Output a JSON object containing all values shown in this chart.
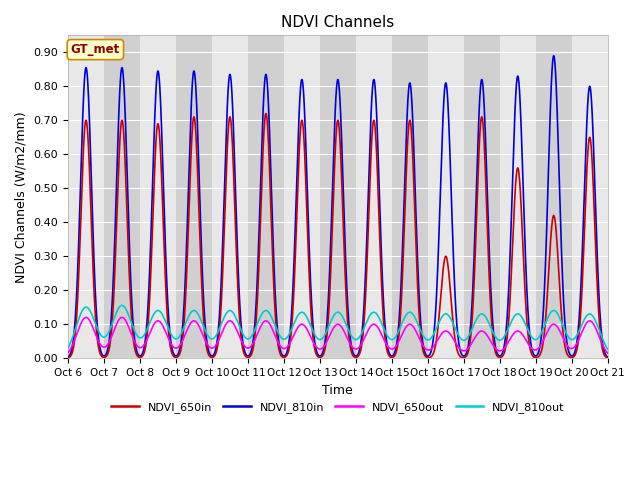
{
  "title": "NDVI Channels",
  "xlabel": "Time",
  "ylabel": "NDVI Channels (W/m2/mm)",
  "ylim": [
    0.0,
    0.95
  ],
  "yticks": [
    0.0,
    0.1,
    0.2,
    0.3,
    0.4,
    0.5,
    0.6,
    0.7,
    0.8,
    0.9
  ],
  "xtick_labels": [
    "Oct 6",
    "Oct 7",
    "Oct 8",
    "Oct 9",
    "Oct 10",
    "Oct 11",
    "Oct 12",
    "Oct 13",
    "Oct 14",
    "Oct 15",
    "Oct 16",
    "Oct 17",
    "Oct 18",
    "Oct 19",
    "Oct 20",
    "Oct 21"
  ],
  "n_days": 15,
  "colors": {
    "NDVI_650in": "#cc0000",
    "NDVI_810in": "#0000dd",
    "NDVI_650out": "#ff00ff",
    "NDVI_810out": "#00cccc"
  },
  "legend_label": "GT_met",
  "bg_light": "#e8e8e8",
  "bg_dark": "#d0d0d0",
  "grid_color": "#ffffff",
  "peaks_810in": [
    0.855,
    0.855,
    0.845,
    0.845,
    0.835,
    0.835,
    0.82,
    0.82,
    0.82,
    0.81,
    0.81,
    0.82,
    0.83,
    0.89,
    0.8
  ],
  "peaks_650in": [
    0.7,
    0.7,
    0.69,
    0.71,
    0.71,
    0.72,
    0.7,
    0.7,
    0.7,
    0.7,
    0.3,
    0.71,
    0.56,
    0.42,
    0.65
  ],
  "peaks_650out": [
    0.12,
    0.12,
    0.11,
    0.11,
    0.11,
    0.11,
    0.1,
    0.1,
    0.1,
    0.1,
    0.08,
    0.08,
    0.08,
    0.1,
    0.11
  ],
  "peaks_810out": [
    0.15,
    0.155,
    0.14,
    0.14,
    0.14,
    0.14,
    0.135,
    0.135,
    0.135,
    0.135,
    0.13,
    0.13,
    0.13,
    0.14,
    0.13
  ]
}
